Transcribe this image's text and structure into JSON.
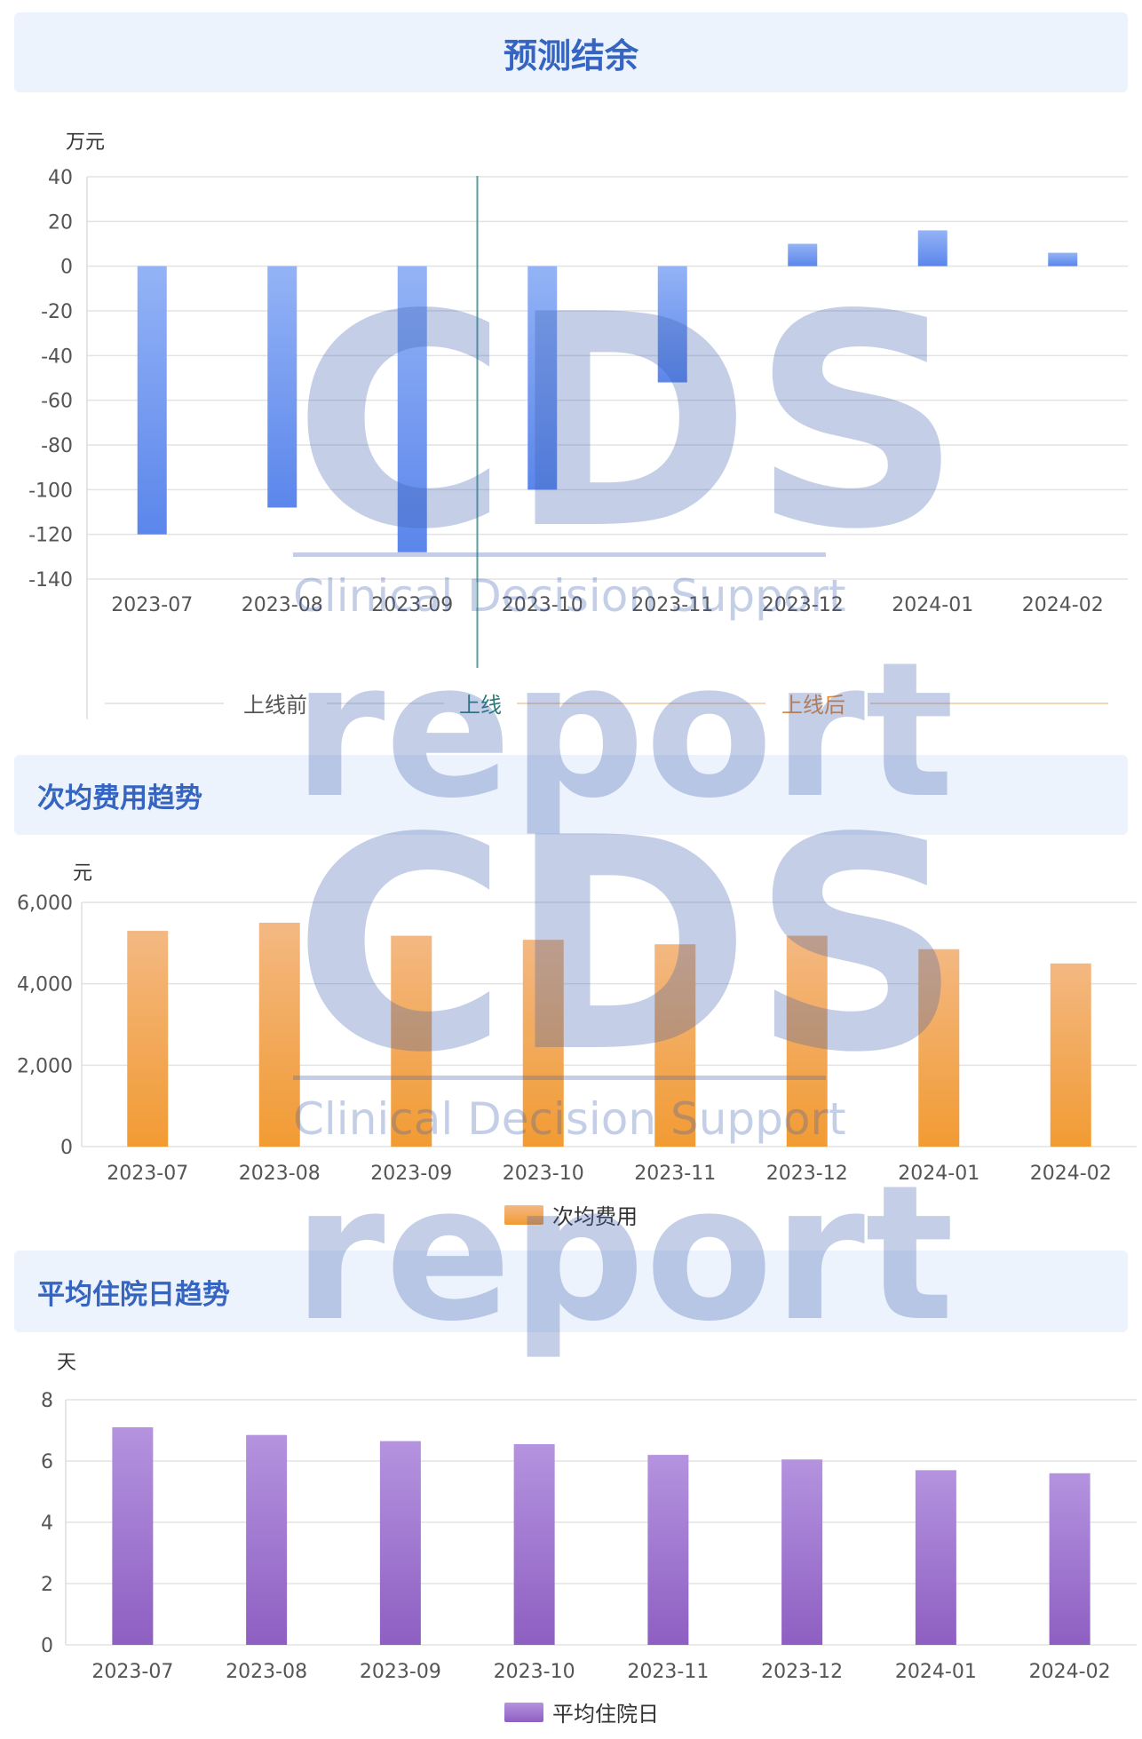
{
  "colors": {
    "blue_bar_top": "#94b3f6",
    "blue_bar_bottom": "#5b86eb",
    "orange_bar_top": "#f3b882",
    "orange_bar_bottom": "#f29b33",
    "purple_bar_top": "#b493df",
    "purple_bar_bottom": "#8e5fc2",
    "header_bg": "#edf3fd",
    "header_text": "#3565c0",
    "grid": "#e3e3e3",
    "launch_line": "#5a9e9a",
    "phase_before": "#555555",
    "phase_launch": "#2e7a78",
    "phase_after": "#e18a3c"
  },
  "sections": {
    "forecast": {
      "title": "预测结余"
    },
    "avg_cost": {
      "title": "次均费用趋势"
    },
    "avg_stay": {
      "title": "平均住院日趋势"
    }
  },
  "phases": {
    "before": "上线前",
    "launch": "上线",
    "after": "上线后"
  },
  "watermark": {
    "logo": "CDS",
    "subtitle": "Clinical Decision Support",
    "word": "report"
  },
  "chart_data": [
    {
      "type": "bar",
      "title": "预测结余",
      "ylabel": "万元",
      "categories": [
        "2023-07",
        "2023-08",
        "2023-09",
        "2023-10",
        "2023-11",
        "2023-12",
        "2024-01",
        "2024-02"
      ],
      "values": [
        -120,
        -108,
        -128,
        -100,
        -52,
        10,
        16,
        6
      ],
      "ylim": [
        -140,
        40
      ],
      "yticks": [
        40,
        20,
        0,
        -20,
        -40,
        -60,
        -80,
        -100,
        -120,
        -140
      ],
      "grid": true,
      "annotation": {
        "launch_between": [
          "2023-09",
          "2023-10"
        ]
      }
    },
    {
      "type": "bar",
      "title": "次均费用趋势",
      "ylabel": "元",
      "categories": [
        "2023-07",
        "2023-08",
        "2023-09",
        "2023-10",
        "2023-11",
        "2023-12",
        "2024-01",
        "2024-02"
      ],
      "series": [
        {
          "name": "次均费用",
          "values": [
            5300,
            5500,
            5180,
            5080,
            4970,
            5180,
            4850,
            4500
          ]
        }
      ],
      "ylim": [
        0,
        6000
      ],
      "yticks": [
        "6,000",
        "4,000",
        "2,000",
        "0"
      ],
      "grid": true,
      "legend": "bottom-center"
    },
    {
      "type": "bar",
      "title": "平均住院日趋势",
      "ylabel": "天",
      "categories": [
        "2023-07",
        "2023-08",
        "2023-09",
        "2023-10",
        "2023-11",
        "2023-12",
        "2024-01",
        "2024-02"
      ],
      "series": [
        {
          "name": "平均住院日",
          "values": [
            7.1,
            6.85,
            6.65,
            6.55,
            6.2,
            6.05,
            5.7,
            5.6
          ]
        }
      ],
      "ylim": [
        0,
        8
      ],
      "yticks": [
        8,
        6,
        4,
        2,
        0
      ],
      "grid": true,
      "legend": "bottom-center"
    }
  ]
}
